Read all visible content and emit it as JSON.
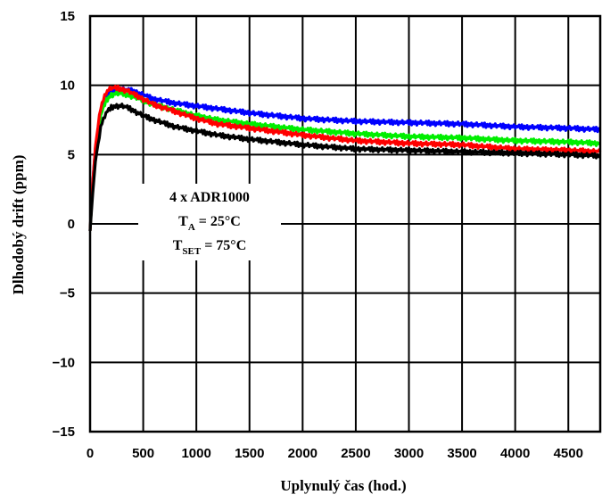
{
  "chart_data": {
    "type": "line",
    "xlabel": "Uplynulý čas (hod.)",
    "ylabel": "Dlhodobý drift (ppm)",
    "xlim": [
      0,
      4800
    ],
    "ylim": [
      -15,
      15
    ],
    "x_ticks": [
      0,
      500,
      1000,
      1500,
      2000,
      2500,
      3000,
      3500,
      4000,
      4500
    ],
    "x_tick_labels": [
      "0",
      "500",
      "1000",
      "1500",
      "2000",
      "2500",
      "3000",
      "3500",
      "4000",
      "4500"
    ],
    "y_ticks": [
      15,
      10,
      5,
      0,
      -5,
      -10,
      -15
    ],
    "y_tick_labels": [
      "15",
      "10",
      "5",
      "0",
      "−5",
      "−10",
      "−15"
    ],
    "grid": true,
    "annotation": {
      "line1": "4 x ADR1000",
      "line2_main": "T",
      "line2_sub": "A",
      "line2_rest": " = 25°C",
      "line3_main": "T",
      "line3_sub": "SET",
      "line3_rest": " = 75°C"
    },
    "series": [
      {
        "color": "#0000ff",
        "x": [
          0,
          25,
          50,
          100,
          150,
          200,
          250,
          300,
          350,
          400,
          500,
          600,
          800,
          1000,
          1200,
          1500,
          2000,
          2500,
          3000,
          3500,
          4000,
          4500,
          4800
        ],
        "y": [
          -0.5,
          3,
          5.5,
          8,
          9.2,
          9.6,
          9.7,
          9.7,
          9.65,
          9.6,
          9.3,
          9.0,
          8.7,
          8.5,
          8.3,
          8.0,
          7.6,
          7.4,
          7.3,
          7.2,
          7.0,
          6.9,
          6.8
        ]
      },
      {
        "color": "#00ee00",
        "x": [
          0,
          25,
          50,
          100,
          150,
          200,
          250,
          300,
          350,
          400,
          500,
          600,
          800,
          1000,
          1200,
          1500,
          2000,
          2500,
          3000,
          3500,
          4000,
          4500,
          4800
        ],
        "y": [
          -0.5,
          2.8,
          5.3,
          7.8,
          8.9,
          9.3,
          9.4,
          9.4,
          9.3,
          9.2,
          8.9,
          8.6,
          8.2,
          7.8,
          7.5,
          7.2,
          6.8,
          6.5,
          6.3,
          6.2,
          6.0,
          5.9,
          5.8
        ]
      },
      {
        "color": "#ff0000",
        "x": [
          0,
          25,
          50,
          100,
          150,
          200,
          250,
          300,
          350,
          400,
          500,
          600,
          800,
          1000,
          1200,
          1500,
          2000,
          2500,
          3000,
          3500,
          4000,
          4500,
          4800
        ],
        "y": [
          -0.5,
          3,
          5.6,
          8.4,
          9.5,
          9.8,
          9.8,
          9.7,
          9.6,
          9.4,
          9.0,
          8.6,
          8.1,
          7.6,
          7.2,
          6.9,
          6.4,
          6.0,
          5.8,
          5.7,
          5.4,
          5.3,
          5.2
        ]
      },
      {
        "color": "#000000",
        "x": [
          0,
          25,
          50,
          100,
          150,
          200,
          250,
          300,
          350,
          400,
          500,
          600,
          800,
          1000,
          1200,
          1500,
          2000,
          2500,
          3000,
          3500,
          4000,
          4500,
          4800
        ],
        "y": [
          -0.5,
          2.2,
          4.5,
          7.0,
          8.0,
          8.4,
          8.5,
          8.5,
          8.4,
          8.2,
          7.8,
          7.5,
          7.0,
          6.7,
          6.4,
          6.1,
          5.7,
          5.4,
          5.3,
          5.2,
          5.1,
          5.0,
          4.9
        ]
      }
    ]
  }
}
